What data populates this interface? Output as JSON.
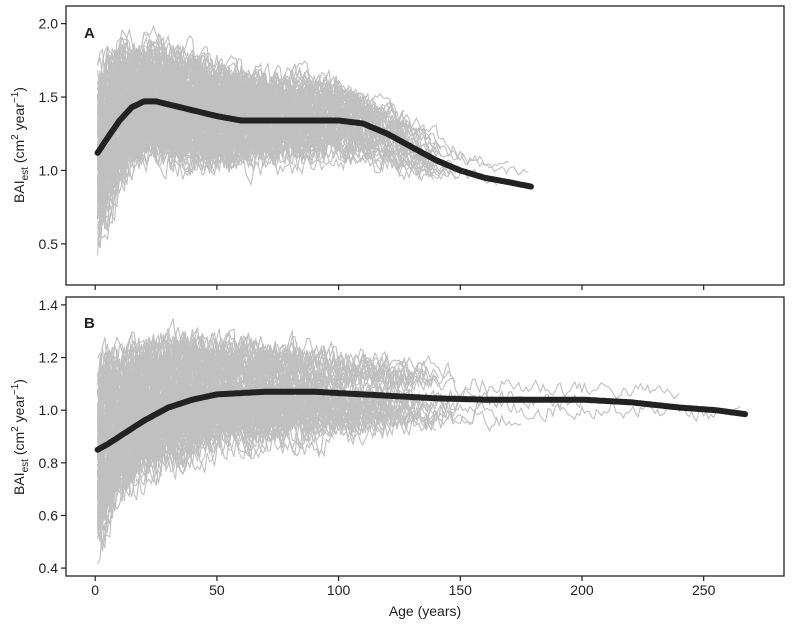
{
  "chart_data": [
    {
      "type": "line",
      "panel_label": "A",
      "ylabel": {
        "main": "BAI",
        "sub": "est",
        "unit_open": " (cm",
        "sup1": "2",
        "unit_mid": " year",
        "sup2": "−1",
        "unit_close": ")"
      },
      "xlim": [
        -12,
        283
      ],
      "ylim": [
        0.22,
        2.12
      ],
      "yticks": [
        0.5,
        1.0,
        1.5,
        2.0
      ],
      "ytick_labels": [
        "0.5",
        "1.0",
        "1.5",
        "2.0"
      ],
      "xticks": [
        0,
        50,
        100,
        150,
        200,
        250
      ],
      "grid": false,
      "background_series": {
        "color": "#c0c0c0",
        "description_values": "many individual tree BAI series",
        "mean_envelope": {
          "x": [
            1,
            5,
            10,
            20,
            40,
            60,
            80,
            100,
            120,
            140,
            160,
            175
          ],
          "center": [
            1.05,
            1.2,
            1.38,
            1.47,
            1.4,
            1.34,
            1.33,
            1.32,
            1.22,
            1.08,
            0.97,
            0.93
          ],
          "spread": [
            0.55,
            0.5,
            0.42,
            0.36,
            0.33,
            0.3,
            0.28,
            0.24,
            0.2,
            0.15,
            0.1,
            0.08
          ]
        },
        "max_ages": [
          120,
          178,
          170,
          165,
          150,
          140
        ]
      },
      "fit_series": {
        "color": "#222222",
        "x": [
          1,
          5,
          10,
          15,
          20,
          25,
          30,
          40,
          50,
          60,
          70,
          80,
          90,
          100,
          110,
          120,
          130,
          140,
          150,
          160,
          170,
          179
        ],
        "y": [
          1.12,
          1.22,
          1.34,
          1.43,
          1.47,
          1.47,
          1.45,
          1.41,
          1.37,
          1.34,
          1.34,
          1.34,
          1.34,
          1.34,
          1.32,
          1.25,
          1.16,
          1.07,
          1.0,
          0.95,
          0.92,
          0.89
        ]
      }
    },
    {
      "type": "line",
      "panel_label": "B",
      "ylabel": {
        "main": "BAI",
        "sub": "est",
        "unit_open": " (cm",
        "sup1": "2",
        "unit_mid": " year",
        "sup2": "−1",
        "unit_close": ")"
      },
      "xlabel": "Age (years)",
      "xlim": [
        -12,
        283
      ],
      "ylim": [
        0.37,
        1.43
      ],
      "yticks": [
        0.4,
        0.6,
        0.8,
        1.0,
        1.2,
        1.4
      ],
      "ytick_labels": [
        "0.4",
        "0.6",
        "0.8",
        "1.0",
        "1.2",
        "1.4"
      ],
      "xticks": [
        0,
        50,
        100,
        150,
        200,
        250
      ],
      "xtick_labels": [
        "0",
        "50",
        "100",
        "150",
        "200",
        "250"
      ],
      "grid": false,
      "background_series": {
        "color": "#c0c0c0",
        "mean_envelope": {
          "x": [
            1,
            5,
            10,
            20,
            40,
            60,
            80,
            100,
            130,
            160,
            200,
            230,
            260
          ],
          "center": [
            0.8,
            0.88,
            0.94,
            1.0,
            1.05,
            1.06,
            1.06,
            1.05,
            1.04,
            1.04,
            1.04,
            1.03,
            1.0
          ],
          "spread": [
            0.33,
            0.3,
            0.26,
            0.23,
            0.2,
            0.18,
            0.17,
            0.15,
            0.12,
            0.1,
            0.08,
            0.07,
            0.06
          ]
        },
        "max_ages": [
          265,
          240,
          200,
          175,
          165,
          150
        ]
      },
      "fit_series": {
        "color": "#222222",
        "x": [
          1,
          5,
          10,
          20,
          30,
          40,
          50,
          60,
          70,
          80,
          90,
          100,
          120,
          140,
          160,
          180,
          200,
          220,
          240,
          255,
          267
        ],
        "y": [
          0.85,
          0.87,
          0.9,
          0.96,
          1.01,
          1.04,
          1.06,
          1.065,
          1.07,
          1.07,
          1.07,
          1.065,
          1.055,
          1.045,
          1.04,
          1.04,
          1.04,
          1.03,
          1.01,
          1.0,
          0.985
        ]
      }
    }
  ]
}
